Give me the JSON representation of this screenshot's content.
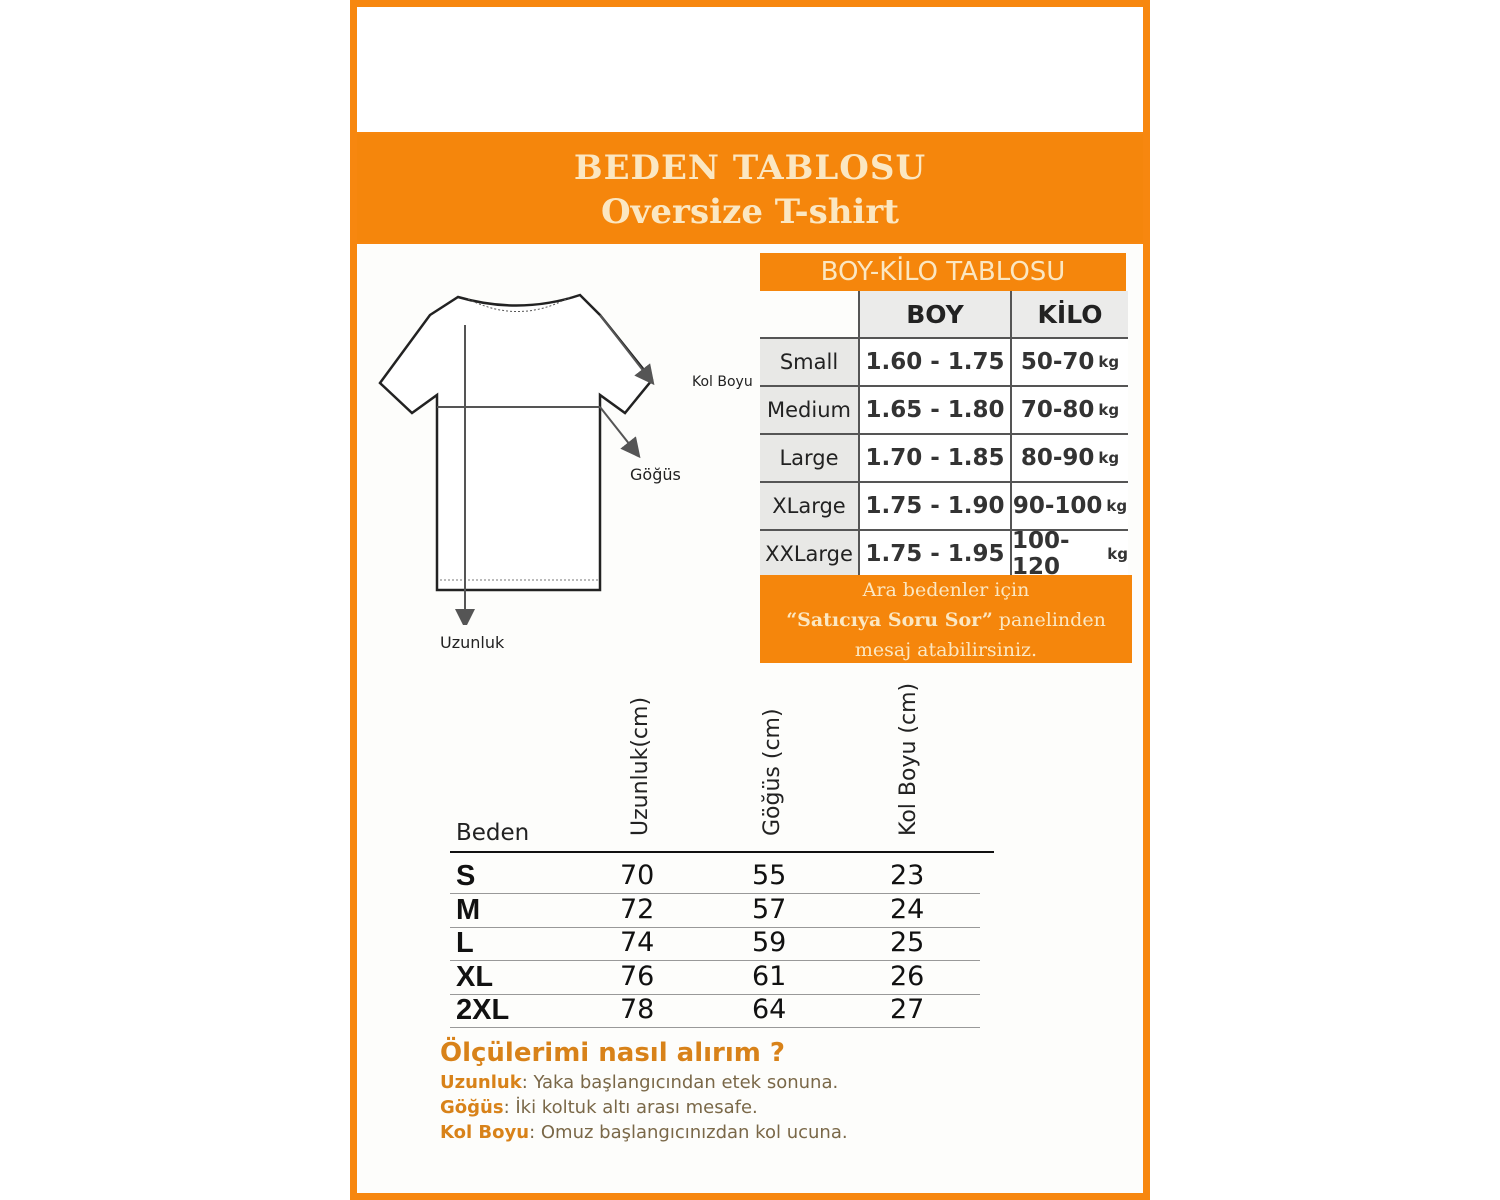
{
  "header": {
    "title": "BEDEN TABLOSU",
    "subtitle": "Oversize T-shirt"
  },
  "colors": {
    "accent": "#f5860c",
    "accent_text": "#fbe7c2"
  },
  "diagram": {
    "labels": {
      "kol_boyu": "Kol Boyu",
      "gogus": "Göğüs",
      "uzunluk": "Uzunluk"
    }
  },
  "boy_kilo": {
    "title": "BOY-KİLO TABLOSU",
    "headers": [
      "BOY",
      "KİLO"
    ],
    "rows": [
      {
        "size": "Small",
        "boy": "1.60 - 1.75",
        "kilo": "50-70",
        "unit": "kg"
      },
      {
        "size": "Medium",
        "boy": "1.65 - 1.80",
        "kilo": "70-80",
        "unit": "kg"
      },
      {
        "size": "Large",
        "boy": "1.70 - 1.85",
        "kilo": "80-90",
        "unit": "kg"
      },
      {
        "size": "XLarge",
        "boy": "1.75 - 1.90",
        "kilo": "90-100",
        "unit": "kg"
      },
      {
        "size": "XXLarge",
        "boy": "1.75 - 1.95",
        "kilo": "100-120",
        "unit": "kg"
      }
    ],
    "note": {
      "line1": "Ara bedenler için",
      "line2_bold": "“Satıcıya Soru Sor”",
      "line2_rest": " panelinden",
      "line3": "mesaj atabilirsiniz."
    }
  },
  "size_table": {
    "headers": [
      "Beden",
      "Uzunluk(cm)",
      "Göğüs (cm)",
      "Kol Boyu (cm)"
    ],
    "rows": [
      [
        "S",
        "70",
        "55",
        "23"
      ],
      [
        "M",
        "72",
        "57",
        "24"
      ],
      [
        "L",
        "74",
        "59",
        "25"
      ],
      [
        "XL",
        "76",
        "61",
        "26"
      ],
      [
        "2XL",
        "78",
        "64",
        "27"
      ]
    ]
  },
  "how_to": {
    "title": "Ölçülerimi nasıl alırım ?",
    "items": [
      {
        "term": "Uzunluk",
        "desc": ": Yaka başlangıcından etek sonuna."
      },
      {
        "term": "Göğüs",
        "desc": ": İki koltuk altı arası mesafe."
      },
      {
        "term": "Kol Boyu",
        "desc": ": Omuz başlangıcınızdan kol ucuna."
      }
    ]
  }
}
